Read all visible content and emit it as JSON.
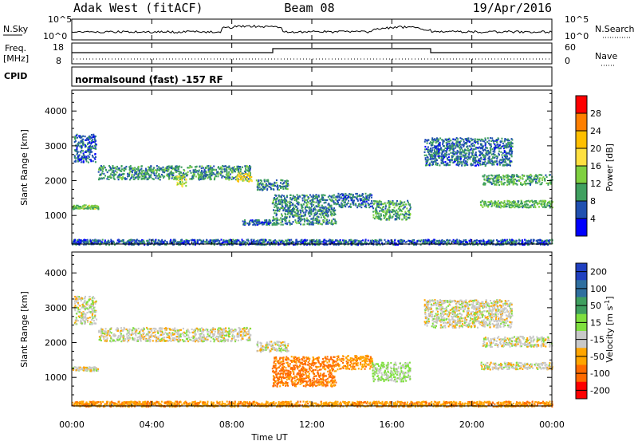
{
  "header": {
    "station": "Adak West (fitACF)",
    "beam": "Beam 08",
    "date": "19/Apr/2016"
  },
  "strip_labels": {
    "nsky": "N.Sky",
    "nsearch": "N.Search",
    "freq_line1": "Freq.",
    "freq_line2": "[MHz]",
    "nave": "Nave",
    "cpid": "CPID",
    "cpid_text": "normalsound (fast) -157 RF",
    "noise_left_top": "10^5",
    "noise_left_bottom": "10^0",
    "noise_right_top": "10^5",
    "noise_right_bottom": "10^0",
    "freq_left_top": "18",
    "freq_left_bottom": "8",
    "nave_right_top": "60",
    "nave_right_bottom": "0"
  },
  "colorbars": {
    "power": {
      "label": "Power [dB]",
      "ticks": [
        "28",
        "24",
        "20",
        "16",
        "12",
        "8",
        "4"
      ],
      "colors": [
        "#ff0000",
        "#ff7f00",
        "#ffbf00",
        "#ffe040",
        "#7fd040",
        "#40a060",
        "#2050b0",
        "#0000ff"
      ]
    },
    "velocity": {
      "label": "Velocity [m s",
      "label_sup": "-1",
      "label_end": "]",
      "ticks": [
        "200",
        "100",
        "50",
        "15",
        "-15",
        "-50",
        "-100",
        "-200"
      ],
      "colors": [
        "#2040c0",
        "#2f6f9f",
        "#3f9f5f",
        "#7fdf3f",
        "#c8c8c8",
        "#ffa500",
        "#ff6a00",
        "#ff0000"
      ]
    }
  },
  "axes": {
    "ylabel": "Slant Range [km]",
    "xlabel": "Time UT",
    "y_ticks": [
      "1000",
      "2000",
      "3000",
      "4000"
    ],
    "x_ticks": [
      "00:00",
      "04:00",
      "08:00",
      "12:00",
      "16:00",
      "20:00",
      "00:00"
    ]
  },
  "chart_data": {
    "type": "heatmap",
    "xlabel": "Time UT",
    "ylabel": "Slant Range [km]",
    "xlim": [
      0,
      24
    ],
    "ylim": [
      180,
      4600
    ],
    "panels": [
      {
        "name": "Power",
        "unit": "dB",
        "clim": [
          0,
          30
        ],
        "bands": [
          {
            "t": [
              0.0,
              1.3
            ],
            "r": [
              1200,
              1320
            ],
            "v": 12
          },
          {
            "t": [
              0.1,
              1.2
            ],
            "r": [
              2550,
              3350
            ],
            "v": 6
          },
          {
            "t": [
              1.3,
              8.9
            ],
            "r": [
              2050,
              2450
            ],
            "v": 9
          },
          {
            "t": [
              5.2,
              5.7
            ],
            "r": [
              1850,
              2150
            ],
            "v": 15
          },
          {
            "t": [
              8.2,
              9.0
            ],
            "r": [
              2000,
              2250
            ],
            "v": 18
          },
          {
            "t": [
              9.2,
              10.8
            ],
            "r": [
              1750,
              2050
            ],
            "v": 8
          },
          {
            "t": [
              8.5,
              10.0
            ],
            "r": [
              750,
              900
            ],
            "v": 6
          },
          {
            "t": [
              10.0,
              13.2
            ],
            "r": [
              760,
              1620
            ],
            "v": 8
          },
          {
            "t": [
              13.2,
              15.0
            ],
            "r": [
              1250,
              1650
            ],
            "v": 7
          },
          {
            "t": [
              15.0,
              16.9
            ],
            "r": [
              900,
              1450
            ],
            "v": 10
          },
          {
            "t": [
              17.6,
              22.0
            ],
            "r": [
              2450,
              3250
            ],
            "v": 7
          },
          {
            "t": [
              20.5,
              24.0
            ],
            "r": [
              1900,
              2200
            ],
            "v": 10
          },
          {
            "t": [
              20.4,
              24.0
            ],
            "r": [
              1250,
              1450
            ],
            "v": 11
          },
          {
            "t": [
              0.0,
              24.0
            ],
            "r": [
              180,
              330
            ],
            "v": 6
          }
        ]
      },
      {
        "name": "Velocity",
        "unit": "m s-1",
        "clim": [
          -200,
          200
        ],
        "bands": [
          {
            "t": [
              0.0,
              1.3
            ],
            "r": [
              1200,
              1320
            ],
            "v": 0
          },
          {
            "t": [
              0.1,
              1.2
            ],
            "r": [
              2550,
              3350
            ],
            "v": 0
          },
          {
            "t": [
              1.3,
              8.9
            ],
            "r": [
              2050,
              2450
            ],
            "v": 0
          },
          {
            "t": [
              9.2,
              10.8
            ],
            "r": [
              1750,
              2050
            ],
            "v": 0
          },
          {
            "t": [
              10.0,
              13.2
            ],
            "r": [
              760,
              1620
            ],
            "v": -60
          },
          {
            "t": [
              13.2,
              15.0
            ],
            "r": [
              1250,
              1650
            ],
            "v": -40
          },
          {
            "t": [
              15.0,
              16.9
            ],
            "r": [
              900,
              1450
            ],
            "v": 20
          },
          {
            "t": [
              17.6,
              22.0
            ],
            "r": [
              2450,
              3250
            ],
            "v": 0
          },
          {
            "t": [
              20.5,
              24.0
            ],
            "r": [
              1900,
              2200
            ],
            "v": 0
          },
          {
            "t": [
              20.4,
              24.0
            ],
            "r": [
              1250,
              1450
            ],
            "v": 0
          },
          {
            "t": [
              0.0,
              24.0
            ],
            "r": [
              180,
              330
            ],
            "v": -40
          }
        ]
      }
    ]
  }
}
